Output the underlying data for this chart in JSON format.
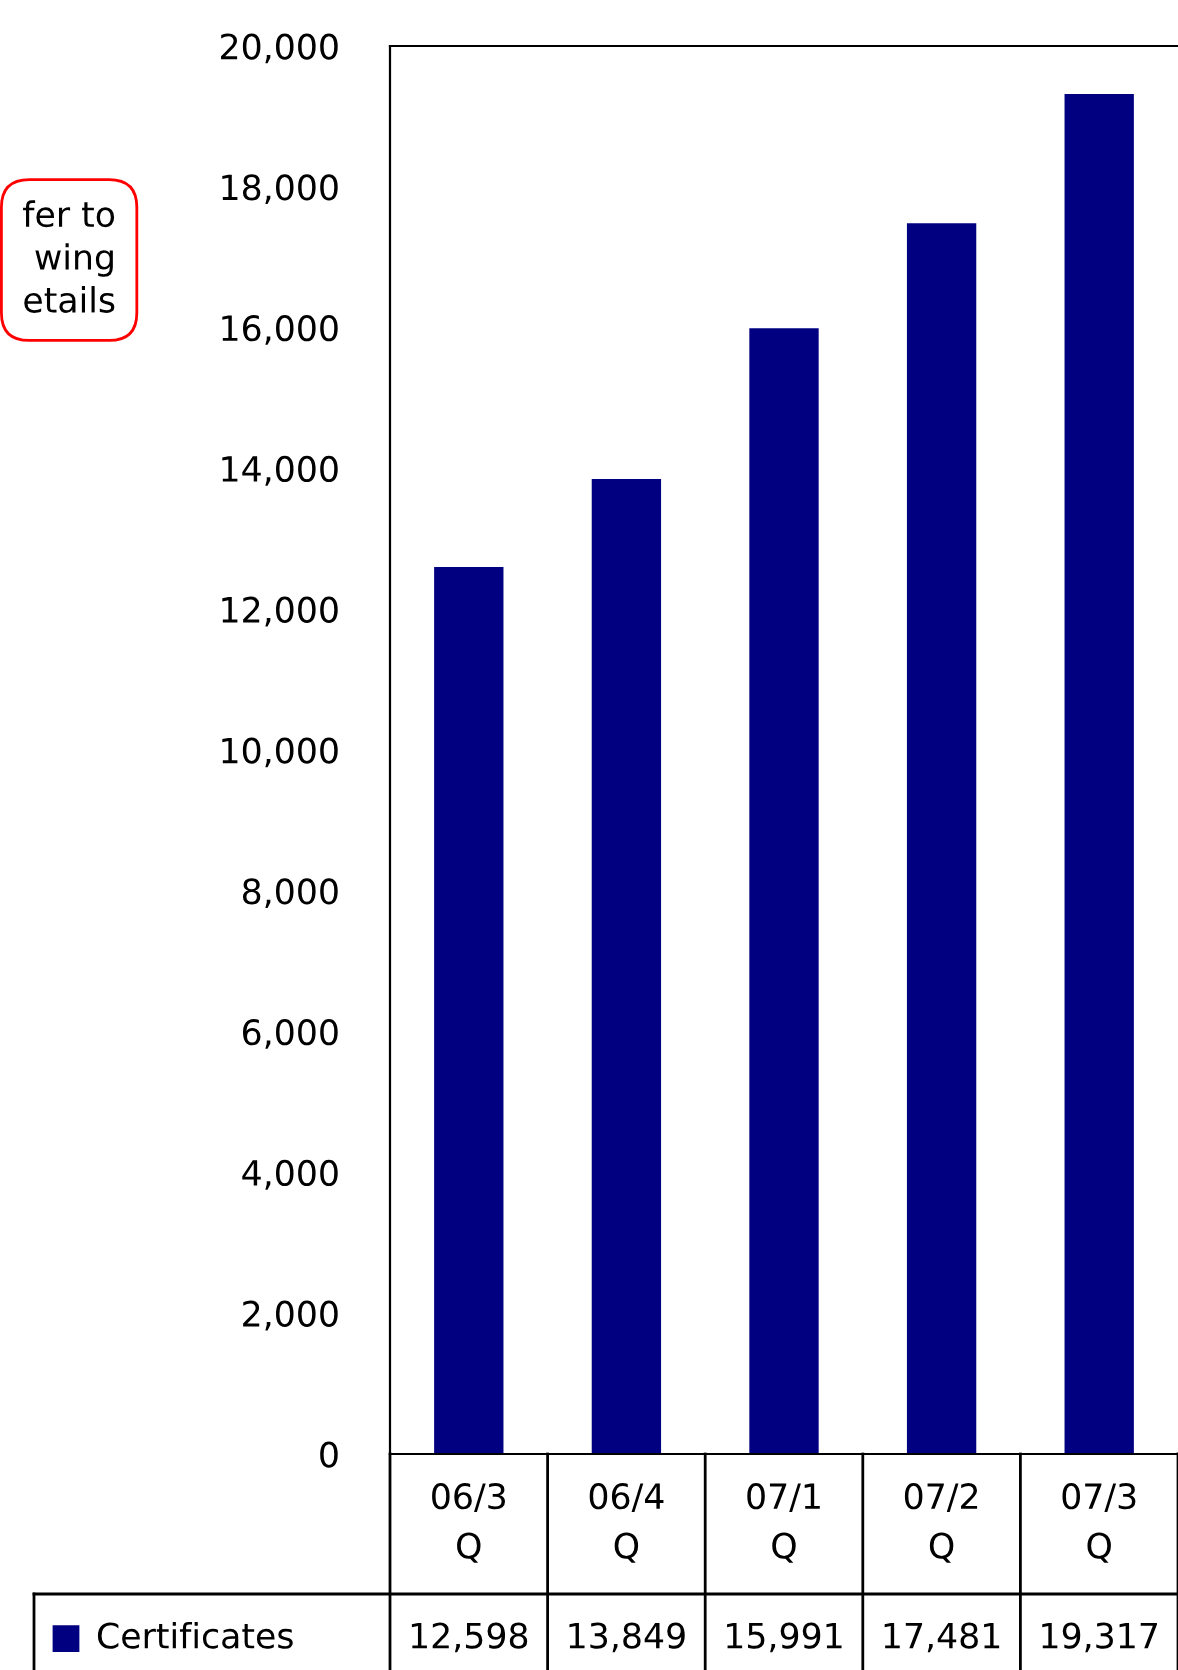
{
  "chart_data": {
    "type": "bar",
    "categories": [
      "06/3\nQ",
      "06/4\nQ",
      "07/1\nQ",
      "07/2\nQ",
      "07/3\nQ"
    ],
    "series": [
      {
        "name": "Certificates",
        "color": "#000080",
        "values": [
          12598,
          13849,
          15991,
          17481,
          19317
        ]
      }
    ],
    "ylim": [
      0,
      20000
    ],
    "yticks": [
      {
        "value": 0,
        "label": "0"
      },
      {
        "value": 2000,
        "label": "2,000"
      },
      {
        "value": 4000,
        "label": "4,000"
      },
      {
        "value": 6000,
        "label": "6,000"
      },
      {
        "value": 8000,
        "label": "8,000"
      },
      {
        "value": 10000,
        "label": "10,000"
      },
      {
        "value": 12000,
        "label": "12,000"
      },
      {
        "value": 14000,
        "label": "14,000"
      },
      {
        "value": 16000,
        "label": "16,000"
      },
      {
        "value": 18000,
        "label": "18,000"
      },
      {
        "value": 20000,
        "label": "20,000"
      }
    ],
    "value_labels": [
      "12,598",
      "13,849",
      "15,991",
      "17,481",
      "19,317"
    ],
    "annotations": [
      "fer to\nwing\netails"
    ],
    "legend": "bottom left",
    "grid": false
  }
}
